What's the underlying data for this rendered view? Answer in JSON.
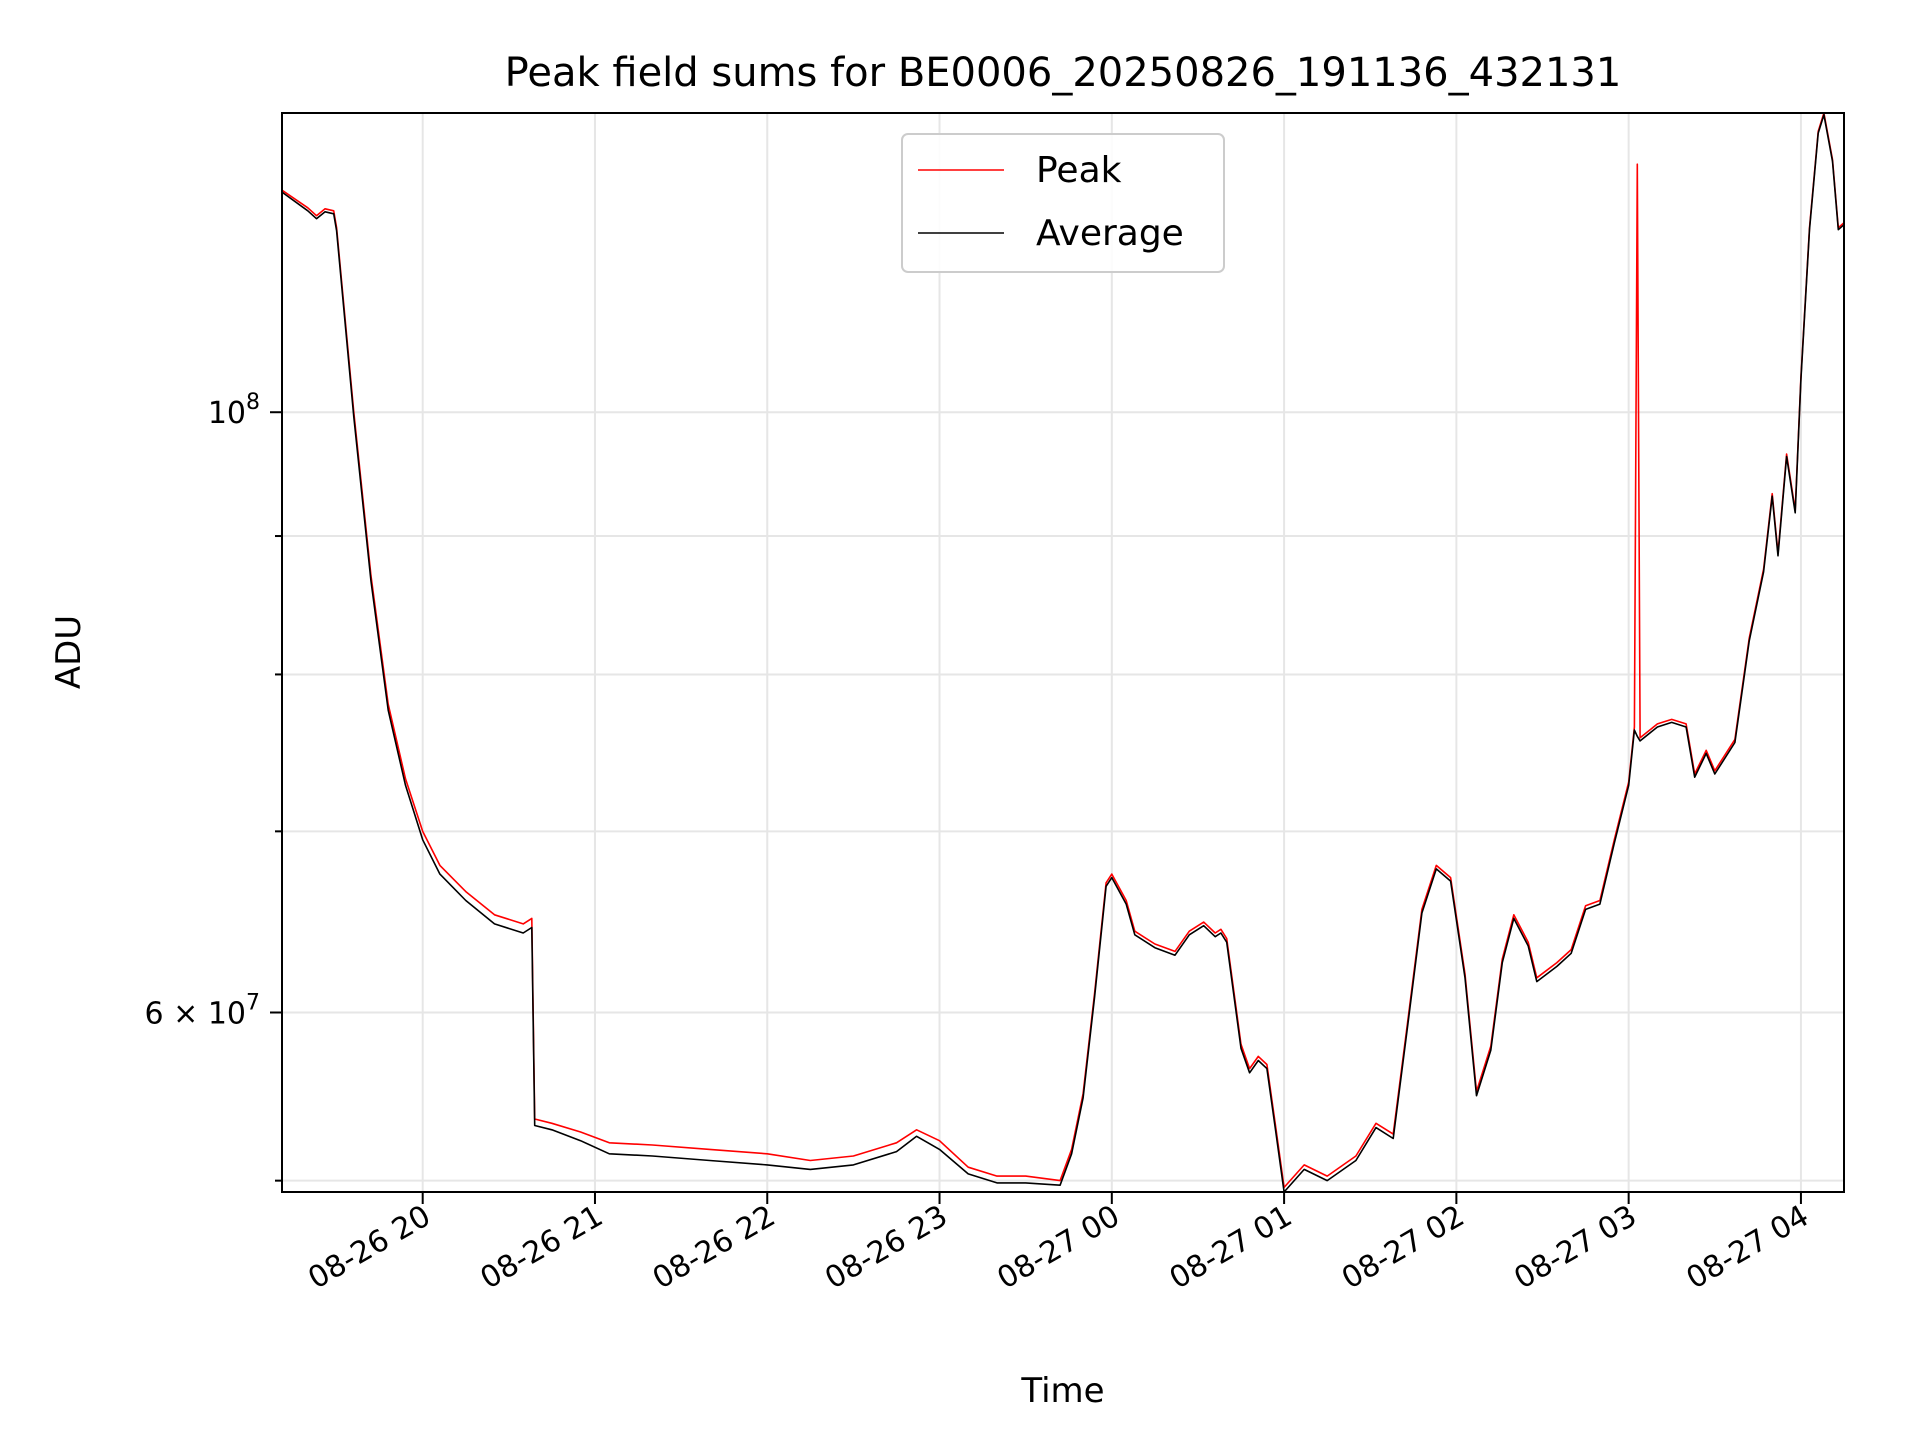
{
  "chart_data": {
    "type": "line",
    "title": "Peak field sums for BE0006_20250826_191136_432131",
    "xlabel": "Time",
    "ylabel": "ADU",
    "yscale": "log",
    "grid": true,
    "legend_position": "top-center",
    "xlim": [
      "2025-08-26 19:11",
      "2025-08-27 04:15"
    ],
    "ylim": [
      51500000,
      129000000
    ],
    "x_ticks": [
      {
        "t": "2025-08-26 20:00",
        "label": "08-26 20"
      },
      {
        "t": "2025-08-26 21:00",
        "label": "08-26 21"
      },
      {
        "t": "2025-08-26 22:00",
        "label": "08-26 22"
      },
      {
        "t": "2025-08-26 23:00",
        "label": "08-26 23"
      },
      {
        "t": "2025-08-27 00:00",
        "label": "08-27 00"
      },
      {
        "t": "2025-08-27 01:00",
        "label": "08-27 01"
      },
      {
        "t": "2025-08-27 02:00",
        "label": "08-27 02"
      },
      {
        "t": "2025-08-27 03:00",
        "label": "08-27 03"
      },
      {
        "t": "2025-08-27 04:00",
        "label": "08-27 04"
      }
    ],
    "y_major_ticks": [
      {
        "value": 100000000,
        "base": "10",
        "exp": "8"
      },
      {
        "value": 60000000,
        "mantissa": "6",
        "base": "10",
        "exp": "7"
      }
    ],
    "y_minor_ticks": [
      52000000,
      70000000,
      80000000,
      90000000
    ],
    "series": [
      {
        "name": "Peak",
        "color": "#ff0000",
        "points": [
          [
            "2025-08-26 19:11",
            120800000
          ],
          [
            "2025-08-26 19:20",
            119000000
          ],
          [
            "2025-08-26 19:23",
            118200000
          ],
          [
            "2025-08-26 19:26",
            118900000
          ],
          [
            "2025-08-26 19:29",
            118700000
          ],
          [
            "2025-08-26 19:30",
            117000000
          ],
          [
            "2025-08-26 19:36",
            100000000
          ],
          [
            "2025-08-26 19:42",
            87000000
          ],
          [
            "2025-08-26 19:48",
            78000000
          ],
          [
            "2025-08-26 19:54",
            73200000
          ],
          [
            "2025-08-26 20:00",
            70000000
          ],
          [
            "2025-08-26 20:06",
            68000000
          ],
          [
            "2025-08-26 20:15",
            66500000
          ],
          [
            "2025-08-26 20:25",
            65200000
          ],
          [
            "2025-08-26 20:35",
            64700000
          ],
          [
            "2025-08-26 20:38",
            65000000
          ],
          [
            "2025-08-26 20:39",
            54800000
          ],
          [
            "2025-08-26 20:45",
            54600000
          ],
          [
            "2025-08-26 20:55",
            54200000
          ],
          [
            "2025-08-26 21:05",
            53700000
          ],
          [
            "2025-08-26 21:20",
            53600000
          ],
          [
            "2025-08-26 21:40",
            53400000
          ],
          [
            "2025-08-26 22:00",
            53200000
          ],
          [
            "2025-08-26 22:15",
            52900000
          ],
          [
            "2025-08-26 22:30",
            53100000
          ],
          [
            "2025-08-26 22:45",
            53700000
          ],
          [
            "2025-08-26 22:52",
            54300000
          ],
          [
            "2025-08-26 23:00",
            53800000
          ],
          [
            "2025-08-26 23:10",
            52600000
          ],
          [
            "2025-08-26 23:20",
            52200000
          ],
          [
            "2025-08-26 23:30",
            52200000
          ],
          [
            "2025-08-26 23:42",
            52000000
          ],
          [
            "2025-08-26 23:46",
            53400000
          ],
          [
            "2025-08-26 23:50",
            56000000
          ],
          [
            "2025-08-26 23:54",
            61000000
          ],
          [
            "2025-08-26 23:58",
            67000000
          ],
          [
            "2025-08-27 00:00",
            67500000
          ],
          [
            "2025-08-27 00:05",
            66000000
          ],
          [
            "2025-08-27 00:08",
            64300000
          ],
          [
            "2025-08-27 00:15",
            63600000
          ],
          [
            "2025-08-27 00:22",
            63200000
          ],
          [
            "2025-08-27 00:27",
            64300000
          ],
          [
            "2025-08-27 00:32",
            64800000
          ],
          [
            "2025-08-27 00:36",
            64200000
          ],
          [
            "2025-08-27 00:38",
            64400000
          ],
          [
            "2025-08-27 00:40",
            63900000
          ],
          [
            "2025-08-27 00:45",
            58400000
          ],
          [
            "2025-08-27 00:48",
            57200000
          ],
          [
            "2025-08-27 00:51",
            57800000
          ],
          [
            "2025-08-27 00:54",
            57400000
          ],
          [
            "2025-08-27 00:57",
            54500000
          ],
          [
            "2025-08-27 01:00",
            51700000
          ],
          [
            "2025-08-27 01:07",
            52700000
          ],
          [
            "2025-08-27 01:15",
            52200000
          ],
          [
            "2025-08-27 01:25",
            53100000
          ],
          [
            "2025-08-27 01:32",
            54600000
          ],
          [
            "2025-08-27 01:38",
            54100000
          ],
          [
            "2025-08-27 01:43",
            59500000
          ],
          [
            "2025-08-27 01:48",
            65500000
          ],
          [
            "2025-08-27 01:53",
            68000000
          ],
          [
            "2025-08-27 01:58",
            67300000
          ],
          [
            "2025-08-27 02:03",
            62000000
          ],
          [
            "2025-08-27 02:07",
            56100000
          ],
          [
            "2025-08-27 02:12",
            58300000
          ],
          [
            "2025-08-27 02:16",
            62800000
          ],
          [
            "2025-08-27 02:20",
            65200000
          ],
          [
            "2025-08-27 02:25",
            63700000
          ],
          [
            "2025-08-27 02:28",
            61800000
          ],
          [
            "2025-08-27 02:35",
            62600000
          ],
          [
            "2025-08-27 02:40",
            63300000
          ],
          [
            "2025-08-27 02:45",
            65700000
          ],
          [
            "2025-08-27 02:50",
            66000000
          ],
          [
            "2025-08-27 02:55",
            69500000
          ],
          [
            "2025-08-27 03:00",
            73000000
          ],
          [
            "2025-08-27 03:02",
            76500000
          ],
          [
            "2025-08-27 03:03",
            123500000
          ],
          [
            "2025-08-27 03:04",
            75800000
          ],
          [
            "2025-08-27 03:10",
            76700000
          ],
          [
            "2025-08-27 03:15",
            77000000
          ],
          [
            "2025-08-27 03:20",
            76700000
          ],
          [
            "2025-08-27 03:23",
            73500000
          ],
          [
            "2025-08-27 03:27",
            75000000
          ],
          [
            "2025-08-27 03:30",
            73700000
          ],
          [
            "2025-08-27 03:37",
            75700000
          ],
          [
            "2025-08-27 03:42",
            82500000
          ],
          [
            "2025-08-27 03:47",
            87500000
          ],
          [
            "2025-08-27 03:50",
            93300000
          ],
          [
            "2025-08-27 03:52",
            88700000
          ],
          [
            "2025-08-27 03:55",
            96500000
          ],
          [
            "2025-08-27 03:58",
            92000000
          ],
          [
            "2025-08-27 04:00",
            103000000
          ],
          [
            "2025-08-27 04:03",
            117000000
          ],
          [
            "2025-08-27 04:06",
            127000000
          ],
          [
            "2025-08-27 04:08",
            129000000
          ],
          [
            "2025-08-27 04:11",
            124000000
          ],
          [
            "2025-08-27 04:13",
            117000000
          ],
          [
            "2025-08-27 04:15",
            117500000
          ]
        ]
      },
      {
        "name": "Average",
        "color": "#000000",
        "points": [
          [
            "2025-08-26 19:11",
            120600000
          ],
          [
            "2025-08-26 19:20",
            118700000
          ],
          [
            "2025-08-26 19:23",
            117900000
          ],
          [
            "2025-08-26 19:26",
            118600000
          ],
          [
            "2025-08-26 19:29",
            118400000
          ],
          [
            "2025-08-26 19:30",
            116700000
          ],
          [
            "2025-08-26 19:36",
            99600000
          ],
          [
            "2025-08-26 19:42",
            86600000
          ],
          [
            "2025-08-26 19:48",
            77600000
          ],
          [
            "2025-08-26 19:54",
            72800000
          ],
          [
            "2025-08-26 20:00",
            69500000
          ],
          [
            "2025-08-26 20:06",
            67500000
          ],
          [
            "2025-08-26 20:15",
            66000000
          ],
          [
            "2025-08-26 20:25",
            64700000
          ],
          [
            "2025-08-26 20:35",
            64200000
          ],
          [
            "2025-08-26 20:38",
            64500000
          ],
          [
            "2025-08-26 20:39",
            54500000
          ],
          [
            "2025-08-26 20:45",
            54300000
          ],
          [
            "2025-08-26 20:55",
            53800000
          ],
          [
            "2025-08-26 21:05",
            53200000
          ],
          [
            "2025-08-26 21:20",
            53100000
          ],
          [
            "2025-08-26 21:40",
            52900000
          ],
          [
            "2025-08-26 22:00",
            52700000
          ],
          [
            "2025-08-26 22:15",
            52500000
          ],
          [
            "2025-08-26 22:30",
            52700000
          ],
          [
            "2025-08-26 22:45",
            53300000
          ],
          [
            "2025-08-26 22:52",
            54000000
          ],
          [
            "2025-08-26 23:00",
            53400000
          ],
          [
            "2025-08-26 23:10",
            52300000
          ],
          [
            "2025-08-26 23:20",
            51900000
          ],
          [
            "2025-08-26 23:30",
            51900000
          ],
          [
            "2025-08-26 23:42",
            51800000
          ],
          [
            "2025-08-26 23:46",
            53200000
          ],
          [
            "2025-08-26 23:50",
            55800000
          ],
          [
            "2025-08-26 23:54",
            60800000
          ],
          [
            "2025-08-26 23:58",
            66800000
          ],
          [
            "2025-08-27 00:00",
            67300000
          ],
          [
            "2025-08-27 00:05",
            65800000
          ],
          [
            "2025-08-27 00:08",
            64100000
          ],
          [
            "2025-08-27 00:15",
            63400000
          ],
          [
            "2025-08-27 00:22",
            63000000
          ],
          [
            "2025-08-27 00:27",
            64100000
          ],
          [
            "2025-08-27 00:32",
            64600000
          ],
          [
            "2025-08-27 00:36",
            64000000
          ],
          [
            "2025-08-27 00:38",
            64200000
          ],
          [
            "2025-08-27 00:40",
            63700000
          ],
          [
            "2025-08-27 00:45",
            58200000
          ],
          [
            "2025-08-27 00:48",
            57000000
          ],
          [
            "2025-08-27 00:51",
            57600000
          ],
          [
            "2025-08-27 00:54",
            57200000
          ],
          [
            "2025-08-27 00:57",
            54300000
          ],
          [
            "2025-08-27 01:00",
            51500000
          ],
          [
            "2025-08-27 01:07",
            52500000
          ],
          [
            "2025-08-27 01:15",
            52000000
          ],
          [
            "2025-08-27 01:25",
            52900000
          ],
          [
            "2025-08-27 01:32",
            54400000
          ],
          [
            "2025-08-27 01:38",
            53900000
          ],
          [
            "2025-08-27 01:43",
            59300000
          ],
          [
            "2025-08-27 01:48",
            65300000
          ],
          [
            "2025-08-27 01:53",
            67800000
          ],
          [
            "2025-08-27 01:58",
            67100000
          ],
          [
            "2025-08-27 02:03",
            61800000
          ],
          [
            "2025-08-27 02:07",
            55900000
          ],
          [
            "2025-08-27 02:12",
            58100000
          ],
          [
            "2025-08-27 02:16",
            62600000
          ],
          [
            "2025-08-27 02:20",
            65000000
          ],
          [
            "2025-08-27 02:25",
            63500000
          ],
          [
            "2025-08-27 02:28",
            61600000
          ],
          [
            "2025-08-27 02:35",
            62400000
          ],
          [
            "2025-08-27 02:40",
            63100000
          ],
          [
            "2025-08-27 02:45",
            65500000
          ],
          [
            "2025-08-27 02:50",
            65800000
          ],
          [
            "2025-08-27 02:55",
            69300000
          ],
          [
            "2025-08-27 03:00",
            72800000
          ],
          [
            "2025-08-27 03:02",
            76300000
          ],
          [
            "2025-08-27 03:03",
            75900000
          ],
          [
            "2025-08-27 03:04",
            75600000
          ],
          [
            "2025-08-27 03:10",
            76500000
          ],
          [
            "2025-08-27 03:15",
            76800000
          ],
          [
            "2025-08-27 03:20",
            76500000
          ],
          [
            "2025-08-27 03:23",
            73300000
          ],
          [
            "2025-08-27 03:27",
            74800000
          ],
          [
            "2025-08-27 03:30",
            73500000
          ],
          [
            "2025-08-27 03:37",
            75500000
          ],
          [
            "2025-08-27 03:42",
            82300000
          ],
          [
            "2025-08-27 03:47",
            87300000
          ],
          [
            "2025-08-27 03:50",
            93100000
          ],
          [
            "2025-08-27 03:52",
            88500000
          ],
          [
            "2025-08-27 03:55",
            96300000
          ],
          [
            "2025-08-27 03:58",
            91800000
          ],
          [
            "2025-08-27 04:00",
            102800000
          ],
          [
            "2025-08-27 04:03",
            116800000
          ],
          [
            "2025-08-27 04:06",
            126800000
          ],
          [
            "2025-08-27 04:08",
            128800000
          ],
          [
            "2025-08-27 04:11",
            123800000
          ],
          [
            "2025-08-27 04:13",
            116800000
          ],
          [
            "2025-08-27 04:15",
            117300000
          ]
        ]
      }
    ]
  }
}
